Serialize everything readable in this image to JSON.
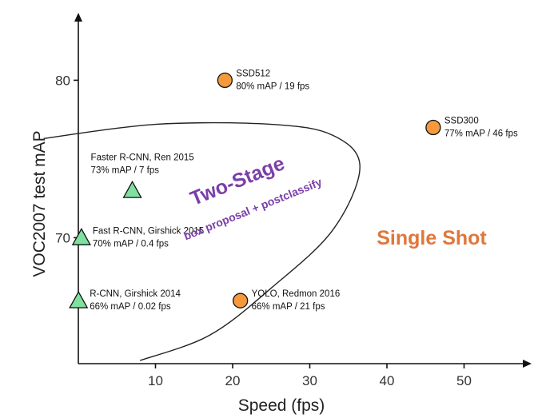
{
  "chart_data": {
    "type": "scatter",
    "title": "",
    "xlabel": "Speed (fps)",
    "ylabel": "VOC2007 test mAP",
    "xlim": [
      0,
      57
    ],
    "ylim": [
      62,
      82
    ],
    "x_ticks": [
      10,
      20,
      30,
      40,
      50
    ],
    "y_ticks": [
      70,
      80
    ],
    "grid": false,
    "colors": {
      "two_stage_marker": "#7fe0a0",
      "single_shot_marker": "#f59a3c",
      "two_stage_text": "#7b3fa8",
      "single_shot_text": "#e0773a"
    },
    "series": [
      {
        "name": "Two-Stage",
        "marker": "triangle",
        "points": [
          {
            "x": 7,
            "y": 73,
            "name": "Faster R-CNN, Ren 2015",
            "detail": "73% mAP / 7 fps"
          },
          {
            "x": 0.4,
            "y": 70,
            "name": "Fast R-CNN, Girshick 2015",
            "detail": "70% mAP / 0.4 fps"
          },
          {
            "x": 0.02,
            "y": 66,
            "name": "R-CNN, Girshick 2014",
            "detail": "66% mAP / 0.02 fps"
          }
        ]
      },
      {
        "name": "Single Shot",
        "marker": "circle",
        "points": [
          {
            "x": 19,
            "y": 80,
            "name": "SSD512",
            "detail": "80% mAP / 19 fps"
          },
          {
            "x": 46,
            "y": 77,
            "name": "SSD300",
            "detail": "77% mAP / 46 fps"
          },
          {
            "x": 21,
            "y": 66,
            "name": "YOLO, Redmon 2016",
            "detail": "66% mAP / 21 fps"
          }
        ]
      }
    ],
    "annotations": {
      "two_stage_title": "Two-Stage",
      "two_stage_subtitle": "box proposal + postclassify",
      "single_shot_title": "Single Shot"
    },
    "region_boundary": [
      [
        -4.5,
        76.3
      ],
      [
        10,
        77.2
      ],
      [
        25,
        77.2
      ],
      [
        33,
        76.5
      ],
      [
        36.5,
        74.5
      ],
      [
        33,
        70.5
      ],
      [
        25,
        66.8
      ],
      [
        17,
        63.8
      ],
      [
        8,
        62.2
      ]
    ]
  }
}
